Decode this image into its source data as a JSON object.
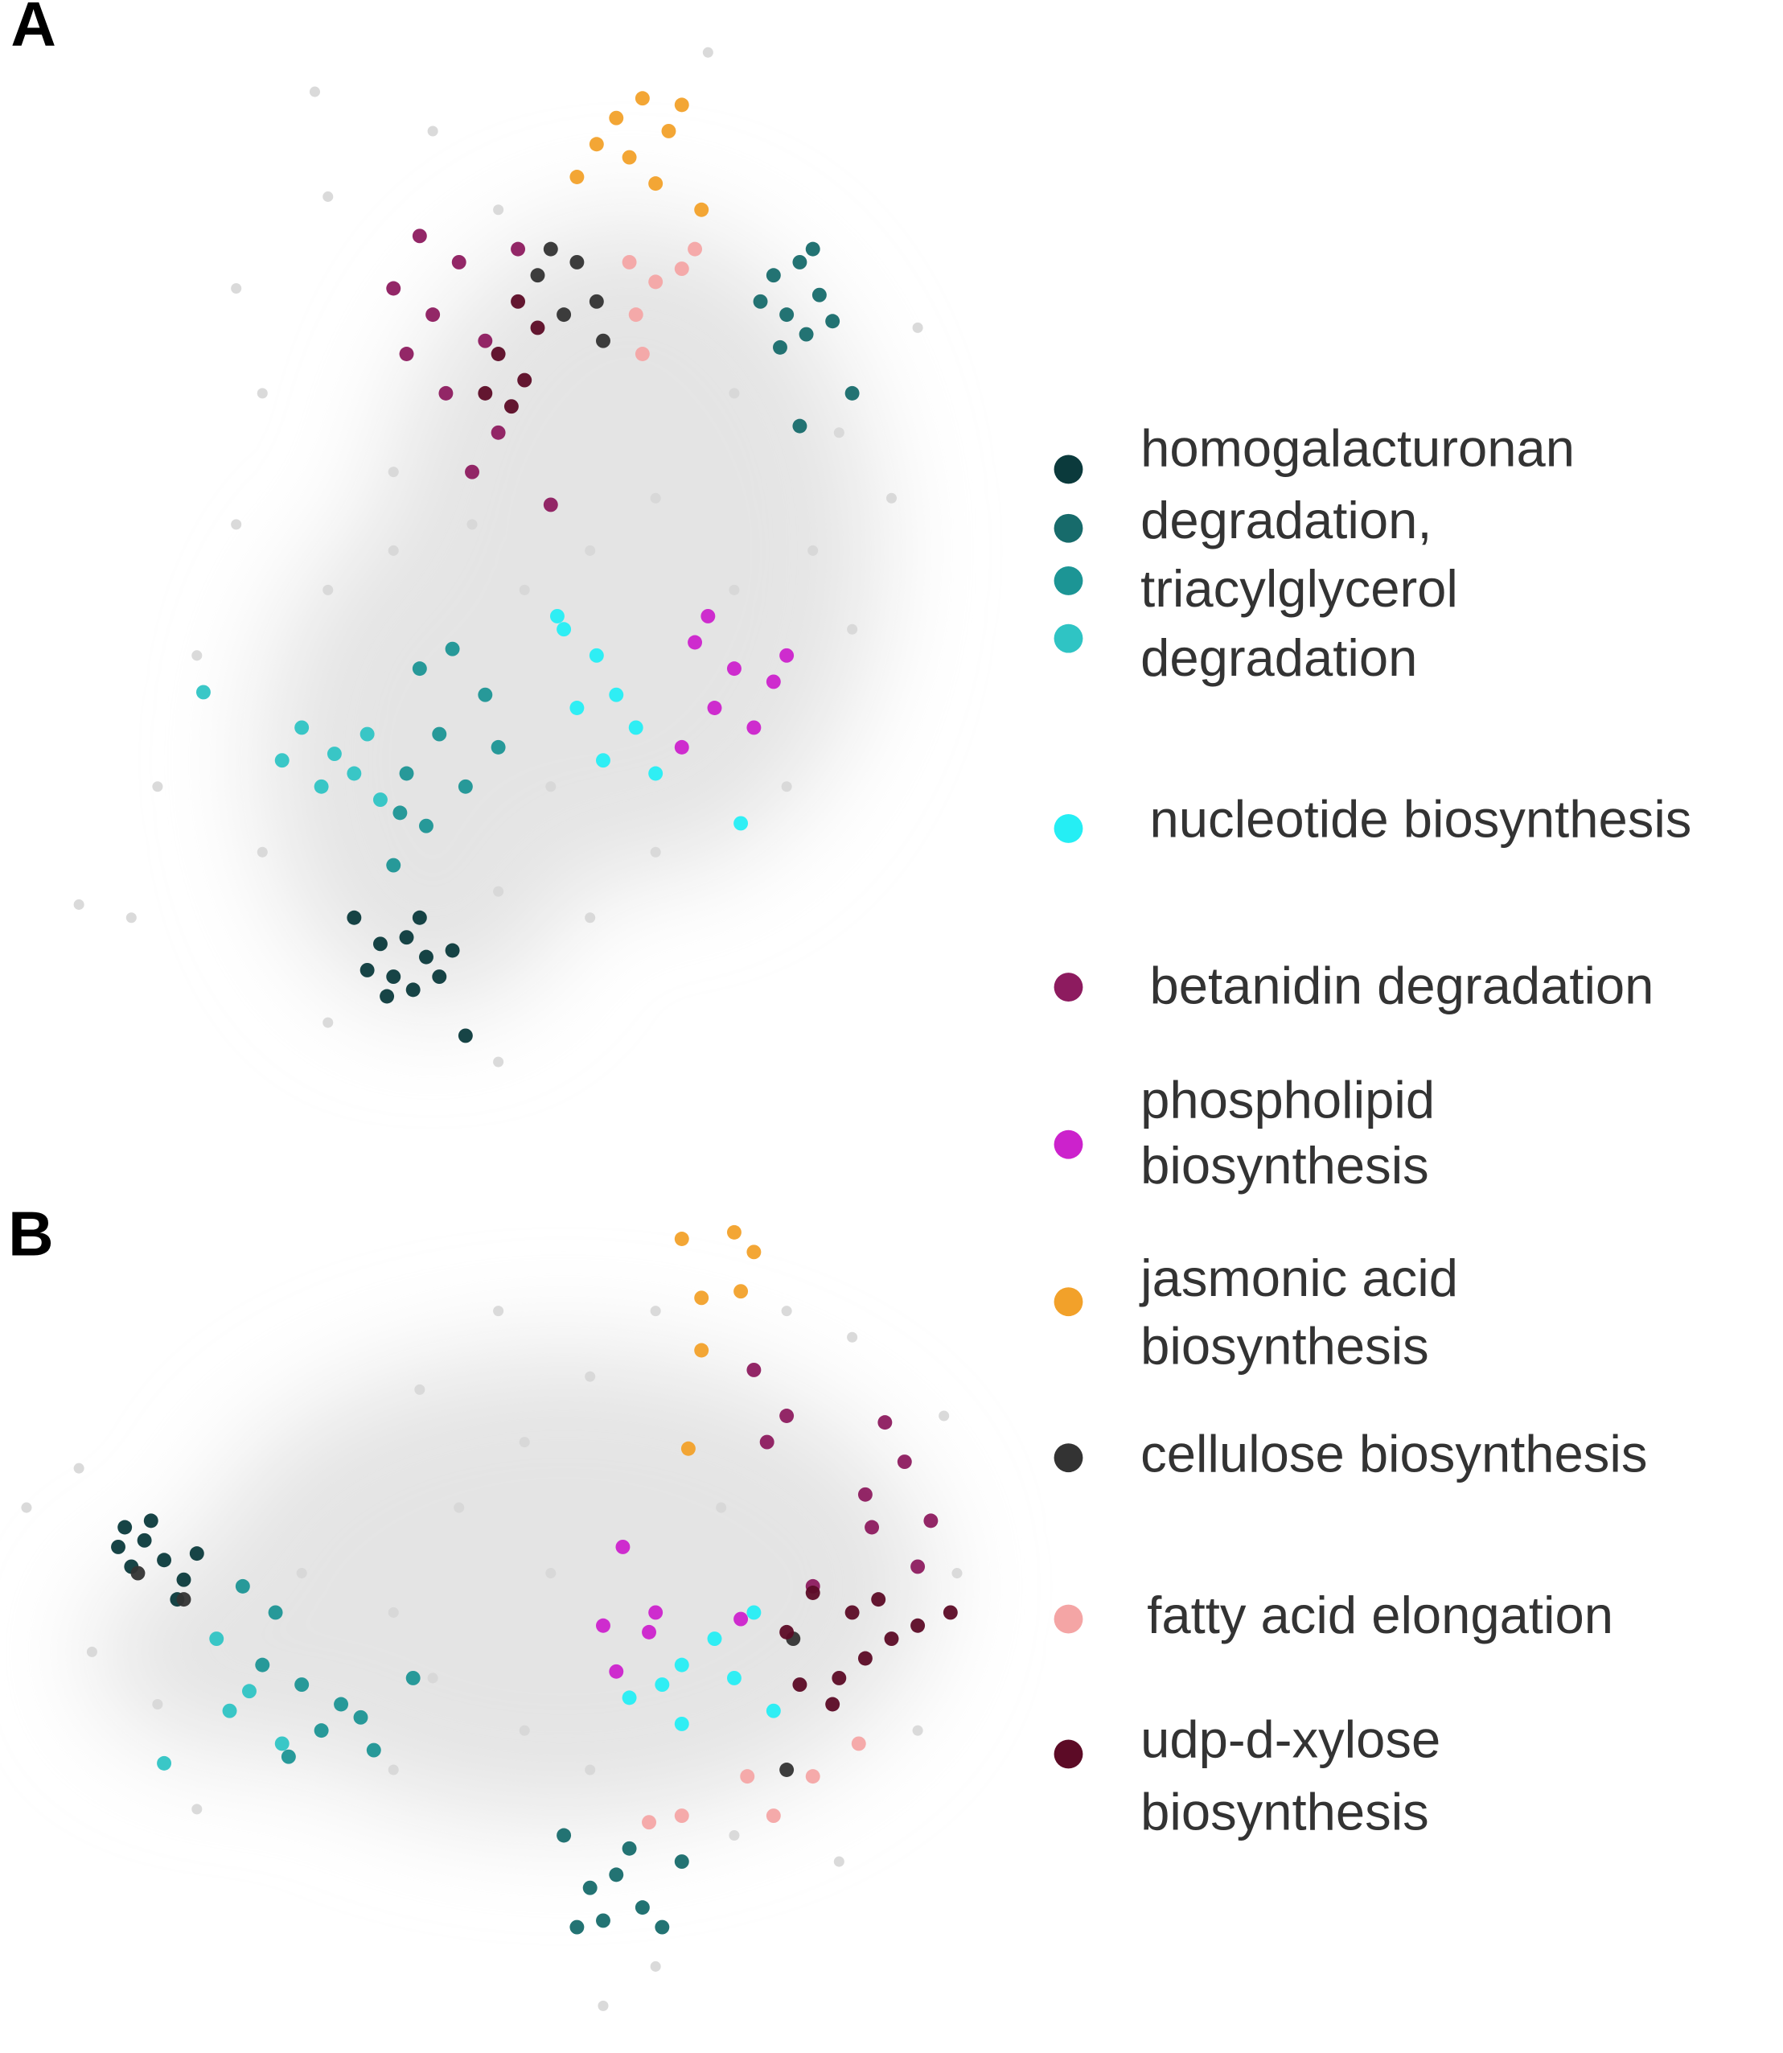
{
  "chart_data": [
    {
      "type": "scatter",
      "label": "A",
      "xlim": [
        0,
        760
      ],
      "ylim": [
        0,
        800
      ],
      "series": [
        {
          "color": "#d6d6d6",
          "x": [
            240,
            330,
            250,
            200,
            180,
            150,
            120,
            200,
            250,
            380,
            450,
            500,
            600,
            650,
            680,
            640,
            560,
            500,
            450,
            400,
            360,
            300,
            250,
            420,
            380,
            560,
            620,
            700,
            100,
            60,
            180,
            540,
            380,
            300
          ],
          "y": [
            770,
            740,
            690,
            540,
            440,
            340,
            240,
            190,
            60,
            30,
            140,
            190,
            240,
            360,
            460,
            510,
            540,
            460,
            420,
            390,
            440,
            420,
            390,
            240,
            160,
            390,
            420,
            590,
            140,
            150,
            620,
            800,
            680,
            480
          ]
        },
        {
          "color": "#0b3a3c",
          "x": [
            290,
            310,
            325,
            300,
            280,
            315,
            335,
            295,
            270,
            355,
            320,
            345
          ],
          "y": [
            120,
            125,
            110,
            95,
            100,
            85,
            95,
            80,
            140,
            50,
            140,
            115
          ]
        },
        {
          "color": "#176b6b",
          "x": [
            590,
            610,
            625,
            600,
            615,
            635,
            595,
            620,
            650,
            610,
            580
          ],
          "y": [
            630,
            640,
            615,
            600,
            585,
            595,
            575,
            650,
            540,
            515,
            610
          ]
        },
        {
          "color": "#1c9595",
          "x": [
            320,
            345,
            370,
            335,
            310,
            355,
            325,
            300,
            380,
            305
          ],
          "y": [
            330,
            345,
            310,
            280,
            250,
            240,
            210,
            180,
            270,
            220
          ]
        },
        {
          "color": "#2fc4c4",
          "x": [
            230,
            255,
            280,
            245,
            270,
            215,
            290,
            155
          ],
          "y": [
            285,
            265,
            280,
            240,
            250,
            260,
            230,
            312
          ]
        },
        {
          "color": "#25eef4",
          "x": [
            430,
            455,
            470,
            440,
            485,
            460,
            500,
            425,
            565
          ],
          "y": [
            360,
            340,
            310,
            300,
            285,
            260,
            250,
            370,
            212
          ]
        },
        {
          "color": "#8d1b5f",
          "x": [
            300,
            330,
            310,
            350,
            370,
            340,
            380,
            360,
            395,
            320,
            420
          ],
          "y": [
            620,
            600,
            570,
            640,
            580,
            540,
            510,
            480,
            650,
            660,
            455
          ]
        },
        {
          "color": "#cc22cc",
          "x": [
            530,
            560,
            590,
            545,
            575,
            520,
            600,
            540
          ],
          "y": [
            350,
            330,
            320,
            300,
            285,
            270,
            340,
            370
          ]
        },
        {
          "color": "#f2a12a",
          "x": [
            470,
            490,
            510,
            480,
            500,
            455,
            520,
            440,
            535
          ],
          "y": [
            750,
            765,
            740,
            720,
            700,
            730,
            760,
            705,
            680
          ]
        },
        {
          "color": "#333333",
          "x": [
            410,
            440,
            455,
            430,
            460,
            420
          ],
          "y": [
            630,
            640,
            610,
            600,
            580,
            650
          ]
        },
        {
          "color": "#f4a5a5",
          "x": [
            480,
            500,
            520,
            485,
            490,
            530
          ],
          "y": [
            640,
            625,
            635,
            600,
            570,
            650
          ]
        },
        {
          "color": "#5c0b26",
          "x": [
            380,
            400,
            390,
            410,
            370,
            395
          ],
          "y": [
            570,
            550,
            530,
            590,
            540,
            610
          ]
        }
      ]
    },
    {
      "type": "scatter",
      "label": "B",
      "xlim": [
        0,
        760
      ],
      "ylim": [
        0,
        640
      ],
      "series": [
        {
          "color": "#d6d6d6",
          "x": [
            20,
            60,
            70,
            120,
            150,
            300,
            330,
            350,
            400,
            450,
            500,
            380,
            320,
            420,
            400,
            450,
            560,
            640,
            700,
            730,
            720,
            650,
            600,
            550,
            500,
            460,
            230,
            300
          ],
          "y": [
            390,
            420,
            280,
            240,
            160,
            190,
            260,
            390,
            440,
            490,
            540,
            540,
            480,
            340,
            220,
            190,
            140,
            120,
            220,
            340,
            460,
            520,
            540,
            390,
            40,
            10,
            340,
            310
          ]
        },
        {
          "color": "#0b3a3c",
          "x": [
            95,
            110,
            125,
            100,
            140,
            90,
            115,
            135,
            150
          ],
          "y": [
            375,
            365,
            350,
            345,
            335,
            360,
            380,
            320,
            355
          ]
        },
        {
          "color": "#176b6b",
          "x": [
            450,
            470,
            490,
            505,
            460,
            520,
            480,
            430,
            440
          ],
          "y": [
            100,
            110,
            85,
            70,
            75,
            120,
            130,
            140,
            70
          ]
        },
        {
          "color": "#1c9595",
          "x": [
            185,
            210,
            200,
            230,
            260,
            245,
            285,
            220,
            275,
            315
          ],
          "y": [
            330,
            310,
            270,
            255,
            240,
            220,
            205,
            200,
            230,
            260
          ]
        },
        {
          "color": "#2fc4c4",
          "x": [
            165,
            175,
            215,
            125,
            190
          ],
          "y": [
            290,
            235,
            210,
            195,
            250
          ]
        },
        {
          "color": "#25eef4",
          "x": [
            480,
            505,
            520,
            545,
            560,
            590,
            520,
            575
          ],
          "y": [
            245,
            255,
            270,
            290,
            260,
            235,
            225,
            310
          ]
        },
        {
          "color": "#8d1b5f",
          "x": [
            575,
            585,
            600,
            660,
            675,
            690,
            710,
            665,
            700,
            620
          ],
          "y": [
            495,
            440,
            460,
            400,
            455,
            425,
            380,
            375,
            345,
            330
          ]
        },
        {
          "color": "#cc22cc",
          "x": [
            460,
            475,
            495,
            470,
            565,
            500
          ],
          "y": [
            300,
            360,
            295,
            265,
            305,
            310
          ]
        },
        {
          "color": "#f2a12a",
          "x": [
            520,
            560,
            575,
            535,
            565,
            535,
            525
          ],
          "y": [
            595,
            600,
            585,
            550,
            555,
            510,
            435
          ]
        },
        {
          "color": "#333333",
          "x": [
            600,
            140,
            105,
            605
          ],
          "y": [
            190,
            320,
            340,
            290
          ]
        },
        {
          "color": "#f4a5a5",
          "x": [
            570,
            620,
            520,
            495,
            655,
            590
          ],
          "y": [
            185,
            185,
            155,
            150,
            210,
            155
          ]
        },
        {
          "color": "#5c0b26",
          "x": [
            620,
            650,
            670,
            680,
            660,
            640,
            700,
            725,
            600,
            610,
            635
          ],
          "y": [
            325,
            310,
            320,
            290,
            275,
            260,
            300,
            310,
            295,
            255,
            240
          ]
        }
      ]
    }
  ],
  "legend": [
    {
      "lines": [
        "homogalacturonan"
      ],
      "color": "#0b3a3c"
    },
    {
      "lines": [
        "degradation,"
      ],
      "color": "#176b6b"
    },
    {
      "lines": [
        "triacylglycerol"
      ],
      "color": "#1c9595"
    },
    {
      "lines": [
        "degradation"
      ],
      "color": "#2fc4c4"
    },
    {
      "lines": [
        "nucleotide biosynthesis"
      ],
      "color": "#25eef4"
    },
    {
      "lines": [
        "betanidin degradation"
      ],
      "color": "#8d1b5f"
    },
    {
      "lines": [
        "phospholipid",
        "biosynthesis"
      ],
      "color": "#cc22cc"
    },
    {
      "lines": [
        "jasmonic acid",
        "biosynthesis"
      ],
      "color": "#f2a12a"
    },
    {
      "lines": [
        "cellulose biosynthesis"
      ],
      "color": "#333333"
    },
    {
      "lines": [
        "fatty acid elongation"
      ],
      "color": "#f4a5a5"
    },
    {
      "lines": [
        "udp-d-xylose",
        "biosynthesis"
      ],
      "color": "#5c0b26"
    }
  ]
}
